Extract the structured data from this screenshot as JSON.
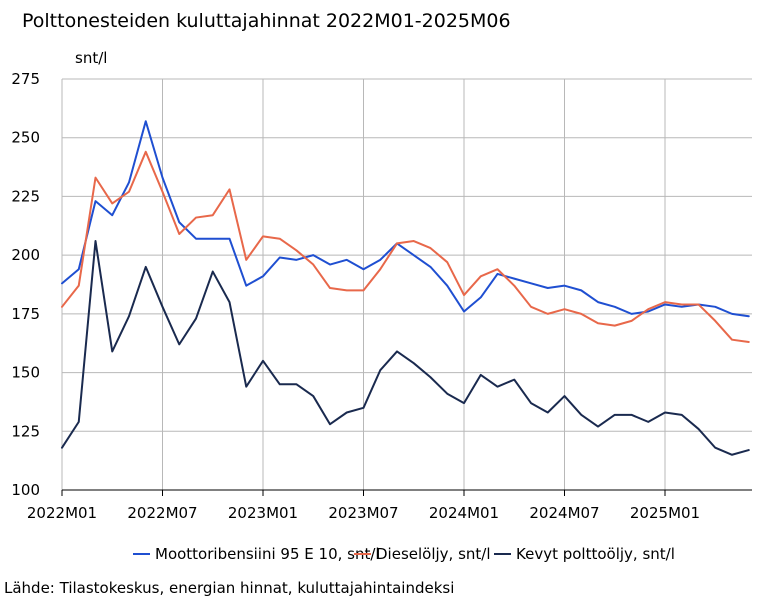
{
  "chart_data": {
    "type": "line",
    "title": "Polttonesteiden kuluttajahinnat 2022M01-2025M06",
    "ylabel": "snt/l",
    "xlabel": "",
    "ylim": [
      100,
      275
    ],
    "yticks": [
      "100",
      "125",
      "150",
      "175",
      "200",
      "225",
      "250",
      "275"
    ],
    "x_tick_labels": [
      "2022M01",
      "2022M07",
      "2023M01",
      "2023M07",
      "2024M01",
      "2024M07",
      "2025M01"
    ],
    "x": [
      "2022M01",
      "2022M02",
      "2022M03",
      "2022M04",
      "2022M05",
      "2022M06",
      "2022M07",
      "2022M08",
      "2022M09",
      "2022M10",
      "2022M11",
      "2022M12",
      "2023M01",
      "2023M02",
      "2023M03",
      "2023M04",
      "2023M05",
      "2023M06",
      "2023M07",
      "2023M08",
      "2023M09",
      "2023M10",
      "2023M11",
      "2023M12",
      "2024M01",
      "2024M02",
      "2024M03",
      "2024M04",
      "2024M05",
      "2024M06",
      "2024M07",
      "2024M08",
      "2024M09",
      "2024M10",
      "2024M11",
      "2024M12",
      "2025M01",
      "2025M02",
      "2025M03",
      "2025M04",
      "2025M05",
      "2025M06"
    ],
    "grid": true,
    "legend_position": "bottom",
    "series": [
      {
        "name": "Moottoribensiini 95 E 10, snt/l",
        "color": "#1f4fd1",
        "values": [
          188,
          194,
          223,
          217,
          231,
          257,
          233,
          214,
          207,
          207,
          207,
          187,
          191,
          199,
          198,
          200,
          196,
          198,
          194,
          198,
          205,
          200,
          195,
          187,
          176,
          182,
          192,
          190,
          188,
          186,
          187,
          185,
          180,
          178,
          175,
          176,
          179,
          178,
          179,
          178,
          175,
          174
        ]
      },
      {
        "name": "Dieselöljy, snt/l",
        "color": "#e8684a",
        "values": [
          178,
          187,
          233,
          222,
          227,
          244,
          227,
          209,
          216,
          217,
          228,
          198,
          208,
          207,
          202,
          196,
          186,
          185,
          185,
          194,
          205,
          206,
          203,
          197,
          183,
          191,
          194,
          187,
          178,
          175,
          177,
          175,
          171,
          170,
          172,
          177,
          180,
          179,
          179,
          172,
          164,
          163
        ]
      },
      {
        "name": "Kevyt polttoöljy, snt/l",
        "color": "#1a2a4f",
        "values": [
          118,
          129,
          206,
          159,
          174,
          195,
          178,
          162,
          173,
          193,
          180,
          144,
          155,
          145,
          145,
          140,
          128,
          133,
          135,
          151,
          159,
          154,
          148,
          141,
          137,
          149,
          144,
          147,
          137,
          133,
          140,
          132,
          127,
          132,
          132,
          129,
          133,
          132,
          126,
          118,
          115,
          117
        ]
      }
    ],
    "source": "Lähde: Tilastokeskus, energian hinnat, kuluttajahintaindeksi"
  }
}
